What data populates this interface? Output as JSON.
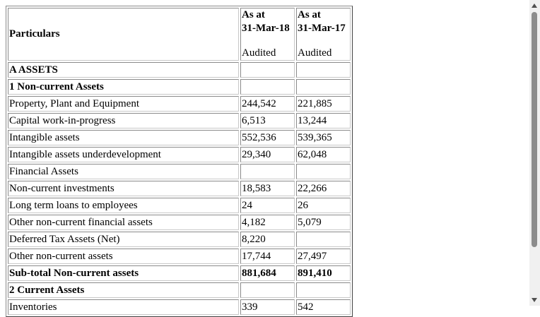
{
  "table": {
    "header": {
      "particulars": "Particulars",
      "col1": {
        "line1": "As at",
        "line2": "31-Mar-18",
        "status": "Audited"
      },
      "col2": {
        "line1": "As at",
        "line2": "31-Mar-17",
        "status": "Audited"
      }
    },
    "rows": [
      {
        "label": "A ASSETS",
        "v1": "",
        "v2": ""
      },
      {
        "label": "1 Non-current Assets",
        "v1": "",
        "v2": ""
      },
      {
        "label": "Property, Plant and Equipment",
        "v1": "244,542",
        "v2": "221,885"
      },
      {
        "label": "Capital work-in-progress",
        "v1": "6,513",
        "v2": "13,244"
      },
      {
        "label": "Intangible assets",
        "v1": "552,536",
        "v2": "539,365"
      },
      {
        "label": "Intangible assets underdevelopment",
        "v1": "29,340",
        "v2": "62,048"
      },
      {
        "label": "Financial Assets",
        "v1": "",
        "v2": ""
      },
      {
        "label": "Non-current investments",
        "v1": "18,583",
        "v2": "22,266"
      },
      {
        "label": "Long term loans to employees",
        "v1": "24",
        "v2": "26"
      },
      {
        "label": "Other non-current financial assets",
        "v1": "4,182",
        "v2": "5,079"
      },
      {
        "label": "Deferred Tax Assets (Net)",
        "v1": "8,220",
        "v2": ""
      },
      {
        "label": "Other non-current assets",
        "v1": "17,744",
        "v2": "27,497"
      },
      {
        "label": "Sub-total Non-current assets",
        "v1": "881,684",
        "v2": "891,410"
      },
      {
        "label": "2 Current Assets",
        "v1": "",
        "v2": ""
      },
      {
        "label": "Inventories",
        "v1": "339",
        "v2": "542"
      }
    ]
  }
}
